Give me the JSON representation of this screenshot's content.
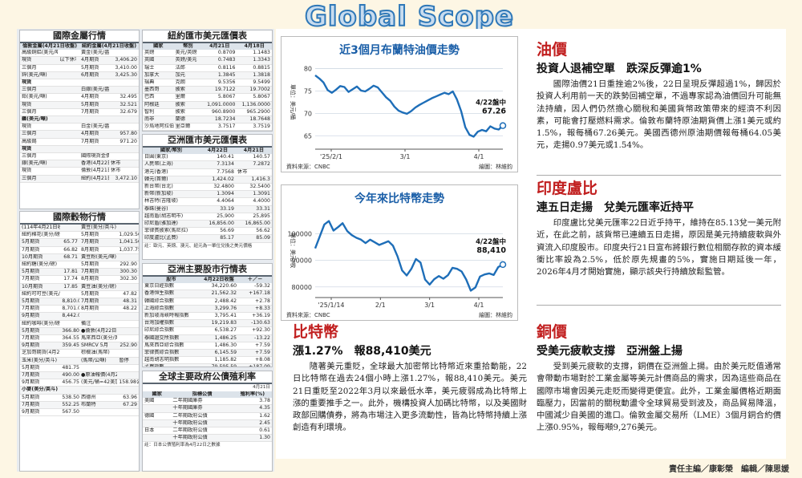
{
  "banner": "Global Scope",
  "footer": "責任主編／康彰榮　編輯／陳思媛",
  "metals": {
    "title": "國際金屬行情",
    "head": [
      "倫敦金屬(4月21日收盤)",
      "紐約金屬(4月21日收盤)"
    ],
    "rows": [
      [
        "高級銅鋁(美元/噸)",
        "",
        "",
        "黃金(美元/盎司)",
        ""
      ],
      [
        "現貨",
        "以下休市",
        "",
        "4月期貨",
        "3,406.20"
      ],
      [
        "三個月",
        "",
        "",
        "5月期貨",
        "3,410.00"
      ],
      [
        "鋅(美元/噸)",
        "",
        "",
        "6月期貨",
        "3,425.30"
      ],
      [
        "現貨",
        "",
        "",
        "",
        ""
      ],
      [
        "三個月",
        "",
        "",
        "白銀(美元/盎司)",
        ""
      ],
      [
        "鉛(美元/噸)",
        "",
        "",
        "4月期貨",
        "32.495"
      ],
      [
        "現貨",
        "",
        "",
        "5月期貨",
        "32.521"
      ],
      [
        "三個月",
        "",
        "",
        "7月期貨",
        "32.679"
      ],
      [
        "鎳(美元/噸)",
        "",
        "",
        "",
        ""
      ],
      [
        "現貨",
        "",
        "",
        "白金(美元/盎司)",
        ""
      ],
      [
        "三個月",
        "",
        "",
        "4月期貨",
        "957.80"
      ],
      [
        "高級錫",
        "",
        "",
        "7月期貨",
        "971.20"
      ],
      [
        "現貨",
        "",
        "",
        "",
        ""
      ],
      [
        "三個月",
        "",
        "",
        "國際現貨金價",
        ""
      ],
      [
        "銀(美元/噸)",
        "",
        "",
        "香港(4月22日)",
        "休市"
      ],
      [
        "現貨",
        "",
        "",
        "倫敦(4月21日)",
        "休市"
      ],
      [
        "三個月",
        "",
        "",
        "紐約(4月21日)",
        "3,472.10"
      ]
    ]
  },
  "grains": {
    "title": "國際穀物行情",
    "note": "(114年4月21日收盤)",
    "rows": [
      [
        "(114年4月21日收盤)",
        "",
        "黃豆(美分/英斗)",
        ""
      ],
      [
        "紐約棉花(美分/磅)",
        "",
        "5月期貨",
        "1,029.50"
      ],
      [
        "5月期貨",
        "65.77",
        "7月期貨",
        "1,041.50"
      ],
      [
        "7月期貨",
        "66.82",
        "8月期貨",
        "1,037.75"
      ],
      [
        "10月期貨",
        "68.71",
        "黃豆粉(美元/噸)",
        ""
      ],
      [
        "紐約糖(美分/磅)",
        "",
        "5月期貨",
        "292.90"
      ],
      [
        "5月期貨",
        "17.81",
        "7月期貨",
        "300.30"
      ],
      [
        "7月期貨",
        "17.74",
        "8月期貨",
        "302.30"
      ],
      [
        "10月期貨",
        "17.85",
        "黃豆油(美分/磅)",
        ""
      ],
      [
        "紐約可可豆(美元/噸)",
        "",
        "5月期貨",
        "47.82"
      ],
      [
        "5月期貨",
        "8,810.00",
        "7月期貨",
        "48.31"
      ],
      [
        "7月期貨",
        "8,701.00",
        "8月期貨",
        "48.22"
      ],
      [
        "9月期貨",
        "8,442.00",
        "",
        ""
      ],
      [
        "紐約咖啡(美分/磅)",
        "",
        "備注",
        ""
      ],
      [
        "5月期貨",
        "366.80",
        "●倫敦(4月22日收盤)",
        ""
      ],
      [
        "7月期貨",
        "364.55",
        "馬來西亞(美分/英斗)",
        ""
      ],
      [
        "9月期貨",
        "359.45",
        "SMRCV 5月",
        "252.90"
      ],
      [
        "芝加哥期貨(4月21日收盤)",
        "",
        "棕櫚油(馬幣)",
        ""
      ],
      [
        "玉米(美分/英斗)",
        "",
        "(馬幣/公噸)",
        "暫停",
        ""
      ],
      [
        "5月期貨",
        "481.75",
        "",
        ""
      ],
      [
        "7月期貨",
        "490.00",
        "●原油報價(4月22日)",
        ""
      ],
      [
        "9月期貨",
        "456.75",
        "(美元/桶=42美加侖)",
        "158.98公升"
      ],
      [
        "小麥(美分/英斗)",
        "",
        "",
        ""
      ],
      [
        "5月期貨",
        "538.50",
        "西德州",
        "63.96"
      ],
      [
        "7月期貨",
        "552.25",
        "布蘭特",
        "67.29"
      ],
      [
        "9月期貨",
        "567.50",
        "",
        ""
      ]
    ]
  },
  "nyfx": {
    "title": "紐約匯市美元匯價表",
    "head": [
      "國家",
      "幣別",
      "4月21日",
      "4月18日"
    ],
    "rows": [
      [
        "英鎊",
        "美元/英鎊",
        "0.8709",
        "1.1483"
      ],
      [
        "英國",
        "英鎊/美元",
        "0.7483",
        "1.3343"
      ],
      [
        "瑞士",
        "法郎",
        "0.8116",
        "0.8815"
      ],
      [
        "加拿大",
        "加元",
        "1.3845",
        "1.3818"
      ],
      [
        "瑞典",
        "克朗",
        "9.5356",
        "9.5499"
      ],
      [
        "墨西哥",
        "披索",
        "19.7122",
        "19.7002"
      ],
      [
        "巴西",
        "里爾",
        "5.8067",
        "5.8067"
      ],
      [
        "阿根廷",
        "披索",
        "1,091.0000",
        "1,136.0000"
      ],
      [
        "智利",
        "披索",
        "960.8900",
        "965.2900"
      ],
      [
        "南非",
        "蘭德",
        "18.7234",
        "18.7648"
      ],
      [
        "沙烏地阿拉伯",
        "里亞爾",
        "3.7517",
        "3.7519"
      ]
    ]
  },
  "asiafx": {
    "title": "亞洲匯市美元匯價表",
    "head": [
      "國家/幣別",
      "4月22日",
      "4月21日"
    ],
    "rows": [
      [
        "日圓(東京)",
        "140.41",
        "140.57"
      ],
      [
        "人民幣(上海)",
        "7.3134",
        "7.2872"
      ],
      [
        "港元(香港)",
        "7.7568",
        "休市"
      ],
      [
        "韓元(首爾)",
        "1,424.02",
        "1,416.3"
      ],
      [
        "新台幣(台北)",
        "32.4800",
        "32.5400"
      ],
      [
        "新幣(新加坡)",
        "1.3094",
        "1.3091"
      ],
      [
        "林吉特(吉隆坡)",
        "4.4064",
        "4.4000"
      ],
      [
        "泰銖(曼谷)",
        "33.19",
        "33.31"
      ],
      [
        "越南盾(胡志明市)",
        "25,900",
        "25,895"
      ],
      [
        "印尼盾(雅加達)",
        "16,856.00",
        "16,865.00"
      ],
      [
        "菲律賓披索(馬尼拉)",
        "56.69",
        "56.62"
      ],
      [
        "印度盧比(孟買)",
        "85.17",
        "85.09"
      ]
    ],
    "note": "註：歐元、英鎊、澳元、紐元為一單位兌換之美元價格"
  },
  "asiastock": {
    "title": "亞洲主要股市行情表",
    "head": [
      "股市",
      "4月22日收盤",
      "＋／－"
    ],
    "rows": [
      [
        "東京日經指數",
        "34,220.60",
        "-59.32"
      ],
      [
        "香港恒生指數",
        "21,562.32",
        "+167.18"
      ],
      [
        "韓國綜合指數",
        "2,488.42",
        "+2.78"
      ],
      [
        "上海綜合指數",
        "3,299.76",
        "+8.33"
      ],
      [
        "新加坡海峽時報指數",
        "3,795.41",
        "+36.19"
      ],
      [
        "台灣加權指數",
        "19,219.83",
        "-130.63"
      ],
      [
        "印尼綜合指數",
        "6,538.27",
        "+92.30"
      ],
      [
        "泰國證交所指數",
        "1,486.25",
        "-13.22"
      ],
      [
        "馬來西亞綜合指數",
        "1,486.30",
        "+7.59"
      ],
      [
        "菲律賓綜合指數",
        "6,145.59",
        "+7.59"
      ],
      [
        "越南胡志明指數",
        "1,185.82",
        "+8.08"
      ],
      [
        "孟買指數",
        "79,595.59",
        "+187.09"
      ],
      [
        "澳洲標普指數",
        "8,013.70",
        "-8.20"
      ],
      [
        "紐西蘭證交所指數",
        "11,830.69",
        "-282.30"
      ]
    ]
  },
  "bonds": {
    "title": "全球主要政府公債殖利率",
    "date": "4月21日",
    "head": [
      "國家",
      "指標公債",
      "殖利率(%)"
    ],
    "rows": [
      [
        "美國",
        "二年期國庫券",
        "3.78"
      ],
      [
        "",
        "十年期國庫券",
        "4.35"
      ],
      [
        "德國",
        "二年期政府公債",
        "1.62"
      ],
      [
        "",
        "十年期政府公債",
        "2.45"
      ],
      [
        "日本",
        "二年期政府公債",
        "0.61"
      ],
      [
        "",
        "十年期政府公債",
        "1.30"
      ]
    ],
    "note": "註：日本公債殖利率為4月22日之數據"
  },
  "oil": {
    "head": "油價",
    "sub": "投資人退補空單　跌深反彈逾1%",
    "body": "國際油價21日重挫逾2%後，22日呈現反彈超過1%，歸因於投資人利用前一天的跌勢回補空單，不過專家認為油價回升可能無法持續，因人們仍然擔心關稅和美國貨幣政策帶來的經濟不利因素，可能會打壓燃料需求。倫敦布蘭特原油期貨價上漲1美元或約1.5%，報每桶67.26美元。美國西德州原油期價報每桶64.05美元，走揚0.97美元或1.54%。"
  },
  "rupee": {
    "head": "印度盧比",
    "sub": "連五日走揚　兌美元匯率近持平",
    "body": "印度盧比兌美元匯率22日近乎持平，維持在85.13兌一美元附近，在此之前，該貨幣已連續五日走揚，原因是美元持續疲軟與外資流入印度股市。印度央行21日宣布將銀行數位相關存款的資本緩衝比率設為2.5%，低於原先規畫的5%，實施日期延後一年，2026年4月才開始實施，顯示該央行持續放鬆監管。"
  },
  "btc": {
    "head": "比特幣",
    "sub": "漲1.27%　報88,410美元",
    "body": "隨著美元重貶，全球最大加密幣比特幣近來重拾動能，22日比特幣在過去24個小時上漲1.27%，報88,410美元。美元21日重貶至2022年3月以來最低水準，美元疲弱成為比特幣上漲的重要推手之一。此外，機構投資人加碼比特幣，以及美國財政部回購債券，將為市場注入更多流動性，皆為比特幣持續上漲創造有利環境。"
  },
  "copper": {
    "head": "銅價",
    "sub": "受美元疲軟支撐　亞洲盤上揚",
    "body": "受到美元疲軟的支撐，銅價在亞洲盤上揚。由於美元貶值通常會帶動市場對於工業金屬等美元計價商品的需求，因為這些商品在國際市場會因美元走貶而變得更便宜。此外，工業金屬價格近期面臨壓力，因當前的關稅動盪令全球貿易受到波及，商品貿易降溫，中國減少自美國的進口。倫敦金屬交易所（LME）3個月銅合約價上漲0.95%，報每噸9,276美元。"
  },
  "chart_data": [
    {
      "type": "line",
      "title": "近3個月布蘭特油價走勢",
      "ylabel": "單位：美元/桶",
      "xticks": [
        "'25/2/1",
        "3/1",
        "4/1"
      ],
      "yticks": [
        65,
        70,
        75,
        80
      ],
      "ylim": [
        62,
        81
      ],
      "annotation": "4/22盤中",
      "annotation_value": "67.26",
      "source": "資料來源：CNBC",
      "credit": "繪圖：林維鈞",
      "values": [
        78.5,
        77.8,
        76.9,
        75.2,
        74.6,
        75.3,
        76.1,
        75.9,
        74.8,
        75.4,
        76.0,
        75.1,
        74.9,
        75.5,
        76.2,
        75.8,
        74.7,
        73.6,
        72.8,
        71.5,
        70.6,
        70.2,
        69.9,
        70.5,
        71.3,
        71.9,
        72.4,
        72.9,
        73.4,
        73.8,
        74.2,
        74.6,
        74.3,
        74.9,
        73.1,
        70.5,
        66.9,
        65.2,
        64.8,
        65.9,
        66.3,
        66.0,
        67.1,
        66.6,
        66.4,
        67.26
      ]
    },
    {
      "type": "line",
      "title": "今年來比特幣走勢",
      "ylabel": "單位：美元/枚",
      "xticks": [
        "'25/1/14",
        "2/1",
        "3/1",
        "4/1"
      ],
      "yticks": [
        80000,
        90000,
        100000
      ],
      "ylim": [
        76000,
        108000
      ],
      "annotation": "4/22盤中",
      "annotation_value": "88,410",
      "source": "資料來源：CNBC",
      "credit": "繪圖：林維鈞",
      "values": [
        94500,
        99000,
        103500,
        104800,
        101200,
        102500,
        104000,
        101000,
        99500,
        98500,
        97800,
        96500,
        97800,
        96800,
        95800,
        96500,
        97200,
        95500,
        91500,
        86200,
        84300,
        86800,
        90500,
        89200,
        82800,
        80900,
        82900,
        84100,
        83100,
        84400,
        87200,
        86800,
        85800,
        82800,
        78600,
        79800,
        83900,
        84700,
        85100,
        84500,
        87500,
        88410
      ]
    }
  ]
}
